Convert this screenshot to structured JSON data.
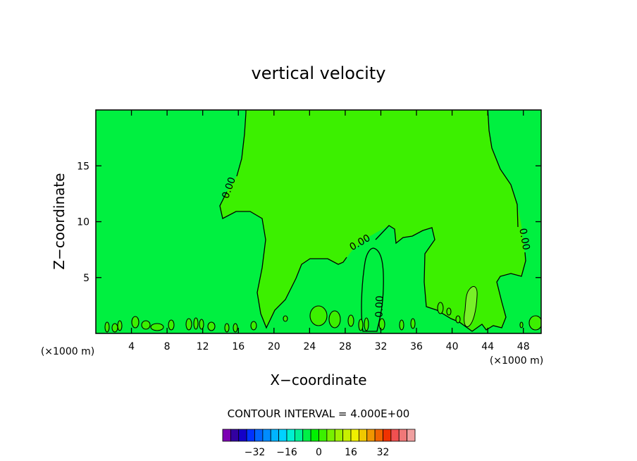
{
  "chart_data": {
    "type": "contour",
    "title": "vertical velocity",
    "xlabel": "X−coordinate",
    "ylabel": "Z−coordinate",
    "x_unit_left": "(×1000 m)",
    "x_unit_right": "(×1000 m)",
    "xlim": [
      0,
      50
    ],
    "ylim": [
      0,
      20
    ],
    "x_ticks": [
      4,
      8,
      12,
      16,
      20,
      24,
      28,
      32,
      36,
      40,
      44,
      48
    ],
    "x_tick_labels": [
      "4",
      "8",
      "12",
      "16",
      "20",
      "24",
      "28",
      "32",
      "36",
      "40",
      "44",
      "48"
    ],
    "y_ticks": [
      5,
      10,
      15
    ],
    "y_tick_labels": [
      "5",
      "10",
      "15"
    ],
    "contour_label": "0.00",
    "contour_interval_text": "CONTOUR INTERVAL = 4.000E+00",
    "background_color": "#00f040",
    "region_colors": {
      "near_zero_positive": "#3cf000",
      "positive_4": "#78f028"
    },
    "colorbar": {
      "colors": [
        "#7d00b4",
        "#3200a0",
        "#1400c8",
        "#0032ff",
        "#0064ff",
        "#008cff",
        "#00b4ff",
        "#00d2ff",
        "#00f0d2",
        "#00f096",
        "#00f046",
        "#00f000",
        "#3cf000",
        "#78f000",
        "#a0f000",
        "#c8f000",
        "#f0f000",
        "#f0c800",
        "#f09600",
        "#f06400",
        "#f03200",
        "#f05050",
        "#f07878",
        "#f0a0a0"
      ],
      "tick_values": [
        -32,
        -16,
        0,
        16,
        32
      ],
      "tick_labels": [
        "−32",
        "−16",
        "0",
        "16",
        "32"
      ]
    }
  }
}
